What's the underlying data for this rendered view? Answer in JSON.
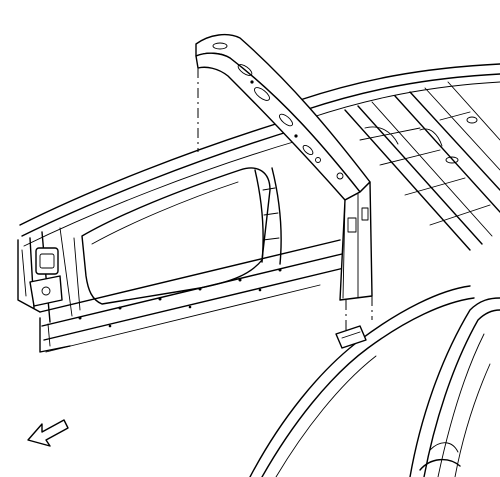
{
  "figure": {
    "background": "#ffffff",
    "line_color": "#000000",
    "components": [
      "side-body-inner-panel",
      "center-pillar-reinforcement",
      "roof-rail-frame",
      "rear-quarter-panel",
      "direction-arrow"
    ]
  }
}
